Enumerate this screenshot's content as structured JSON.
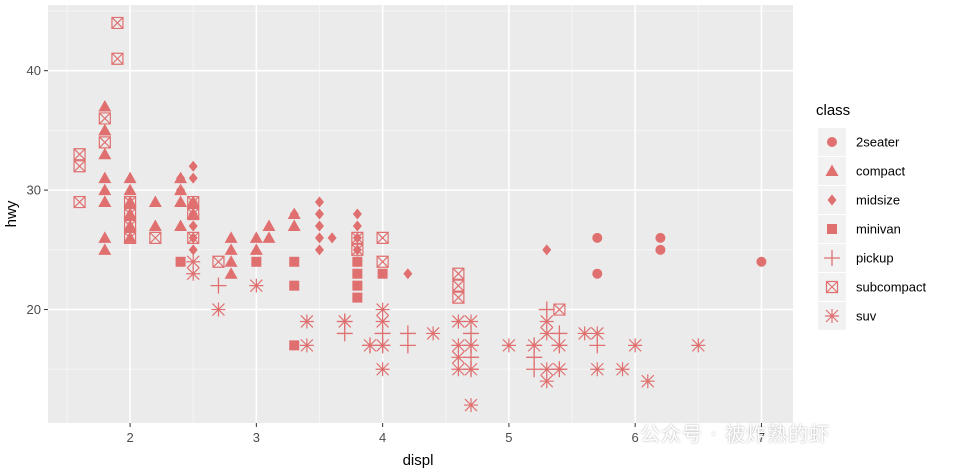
{
  "chart_data": {
    "type": "scatter",
    "xlabel": "displ",
    "ylabel": "hwy",
    "xlim": [
      1.35,
      7.25
    ],
    "ylim": [
      10.5,
      45.5
    ],
    "x_ticks": [
      2,
      3,
      4,
      5,
      6,
      7
    ],
    "y_ticks": [
      20,
      30,
      40
    ],
    "grid": true,
    "legend_position": "right",
    "legend_title": "class",
    "point_color": "#E07070",
    "panel_background": "#EBEBEB",
    "series": [
      {
        "name": "2seater",
        "shape": "circle",
        "points": [
          [
            5.7,
            26
          ],
          [
            5.7,
            23
          ],
          [
            6.2,
            26
          ],
          [
            6.2,
            25
          ],
          [
            7.0,
            24
          ]
        ]
      },
      {
        "name": "compact",
        "shape": "triangle",
        "points": [
          [
            1.8,
            29
          ],
          [
            1.8,
            29
          ],
          [
            1.8,
            31
          ],
          [
            1.8,
            30
          ],
          [
            1.8,
            26
          ],
          [
            1.8,
            25
          ],
          [
            1.8,
            33
          ],
          [
            1.8,
            35
          ],
          [
            1.8,
            37
          ],
          [
            1.8,
            35
          ],
          [
            2.0,
            31
          ],
          [
            2.0,
            30
          ],
          [
            2.0,
            29
          ],
          [
            2.0,
            28
          ],
          [
            2.0,
            27
          ],
          [
            2.0,
            26
          ],
          [
            2.2,
            29
          ],
          [
            2.2,
            27
          ],
          [
            2.4,
            30
          ],
          [
            2.4,
            31
          ],
          [
            2.4,
            29
          ],
          [
            2.4,
            27
          ],
          [
            2.5,
            29
          ],
          [
            2.5,
            28
          ],
          [
            2.8,
            26
          ],
          [
            2.8,
            25
          ],
          [
            2.8,
            24
          ],
          [
            2.8,
            23
          ],
          [
            3.0,
            26
          ],
          [
            3.0,
            25
          ],
          [
            3.1,
            27
          ],
          [
            3.1,
            26
          ],
          [
            3.3,
            28
          ],
          [
            3.3,
            27
          ]
        ]
      },
      {
        "name": "midsize",
        "shape": "diamond",
        "points": [
          [
            2.4,
            31
          ],
          [
            2.4,
            30
          ],
          [
            2.5,
            32
          ],
          [
            2.5,
            31
          ],
          [
            2.5,
            29
          ],
          [
            2.5,
            28
          ],
          [
            2.5,
            27
          ],
          [
            2.5,
            26
          ],
          [
            2.5,
            25
          ],
          [
            3.3,
            28
          ],
          [
            3.5,
            29
          ],
          [
            3.5,
            28
          ],
          [
            3.5,
            27
          ],
          [
            3.5,
            26
          ],
          [
            3.5,
            25
          ],
          [
            3.6,
            26
          ],
          [
            3.8,
            28
          ],
          [
            3.8,
            27
          ],
          [
            3.8,
            26
          ],
          [
            3.8,
            25
          ],
          [
            3.8,
            24
          ],
          [
            4.2,
            23
          ],
          [
            5.3,
            25
          ]
        ]
      },
      {
        "name": "minivan",
        "shape": "square",
        "points": [
          [
            2.4,
            24
          ],
          [
            3.0,
            24
          ],
          [
            3.3,
            24
          ],
          [
            3.3,
            22
          ],
          [
            3.3,
            17
          ],
          [
            3.8,
            24
          ],
          [
            3.8,
            23
          ],
          [
            3.8,
            22
          ],
          [
            3.8,
            21
          ],
          [
            4.0,
            23
          ]
        ]
      },
      {
        "name": "pickup",
        "shape": "plus",
        "points": [
          [
            2.7,
            22
          ],
          [
            3.7,
            19
          ],
          [
            3.7,
            18
          ],
          [
            3.9,
            17
          ],
          [
            4.0,
            17
          ],
          [
            4.0,
            18
          ],
          [
            4.2,
            17
          ],
          [
            4.2,
            18
          ],
          [
            4.7,
            18
          ],
          [
            4.7,
            17
          ],
          [
            4.7,
            16
          ],
          [
            4.7,
            15
          ],
          [
            5.2,
            17
          ],
          [
            5.2,
            16
          ],
          [
            5.2,
            15
          ],
          [
            5.3,
            20
          ],
          [
            5.4,
            18
          ],
          [
            5.4,
            17
          ],
          [
            5.4,
            15
          ],
          [
            5.7,
            17
          ]
        ]
      },
      {
        "name": "subcompact",
        "shape": "square-cross",
        "points": [
          [
            1.6,
            33
          ],
          [
            1.6,
            32
          ],
          [
            1.6,
            29
          ],
          [
            1.8,
            36
          ],
          [
            1.8,
            34
          ],
          [
            1.9,
            44
          ],
          [
            1.9,
            41
          ],
          [
            2.0,
            29
          ],
          [
            2.0,
            28
          ],
          [
            2.0,
            27
          ],
          [
            2.0,
            26
          ],
          [
            2.2,
            26
          ],
          [
            2.5,
            29
          ],
          [
            2.5,
            28
          ],
          [
            2.5,
            26
          ],
          [
            2.7,
            24
          ],
          [
            3.8,
            26
          ],
          [
            3.8,
            25
          ],
          [
            4.0,
            26
          ],
          [
            4.0,
            24
          ],
          [
            4.6,
            23
          ],
          [
            4.6,
            22
          ],
          [
            4.6,
            21
          ],
          [
            5.4,
            20
          ]
        ]
      },
      {
        "name": "suv",
        "shape": "asterisk",
        "points": [
          [
            2.5,
            24
          ],
          [
            2.5,
            23
          ],
          [
            2.7,
            20
          ],
          [
            3.0,
            22
          ],
          [
            3.4,
            19
          ],
          [
            3.4,
            17
          ],
          [
            3.7,
            19
          ],
          [
            3.9,
            17
          ],
          [
            4.0,
            20
          ],
          [
            4.0,
            19
          ],
          [
            4.0,
            17
          ],
          [
            4.0,
            15
          ],
          [
            4.4,
            18
          ],
          [
            4.6,
            19
          ],
          [
            4.6,
            17
          ],
          [
            4.6,
            16
          ],
          [
            4.6,
            15
          ],
          [
            4.7,
            19
          ],
          [
            4.7,
            17
          ],
          [
            4.7,
            15
          ],
          [
            4.7,
            12
          ],
          [
            5.0,
            17
          ],
          [
            5.2,
            17
          ],
          [
            5.3,
            19
          ],
          [
            5.3,
            18
          ],
          [
            5.3,
            15
          ],
          [
            5.3,
            14
          ],
          [
            5.4,
            17
          ],
          [
            5.4,
            15
          ],
          [
            5.6,
            18
          ],
          [
            5.7,
            18
          ],
          [
            5.7,
            15
          ],
          [
            5.9,
            15
          ],
          [
            6.0,
            17
          ],
          [
            6.1,
            14
          ],
          [
            6.5,
            17
          ]
        ]
      }
    ]
  },
  "watermark": "公众号 · 被炸熟的虾"
}
